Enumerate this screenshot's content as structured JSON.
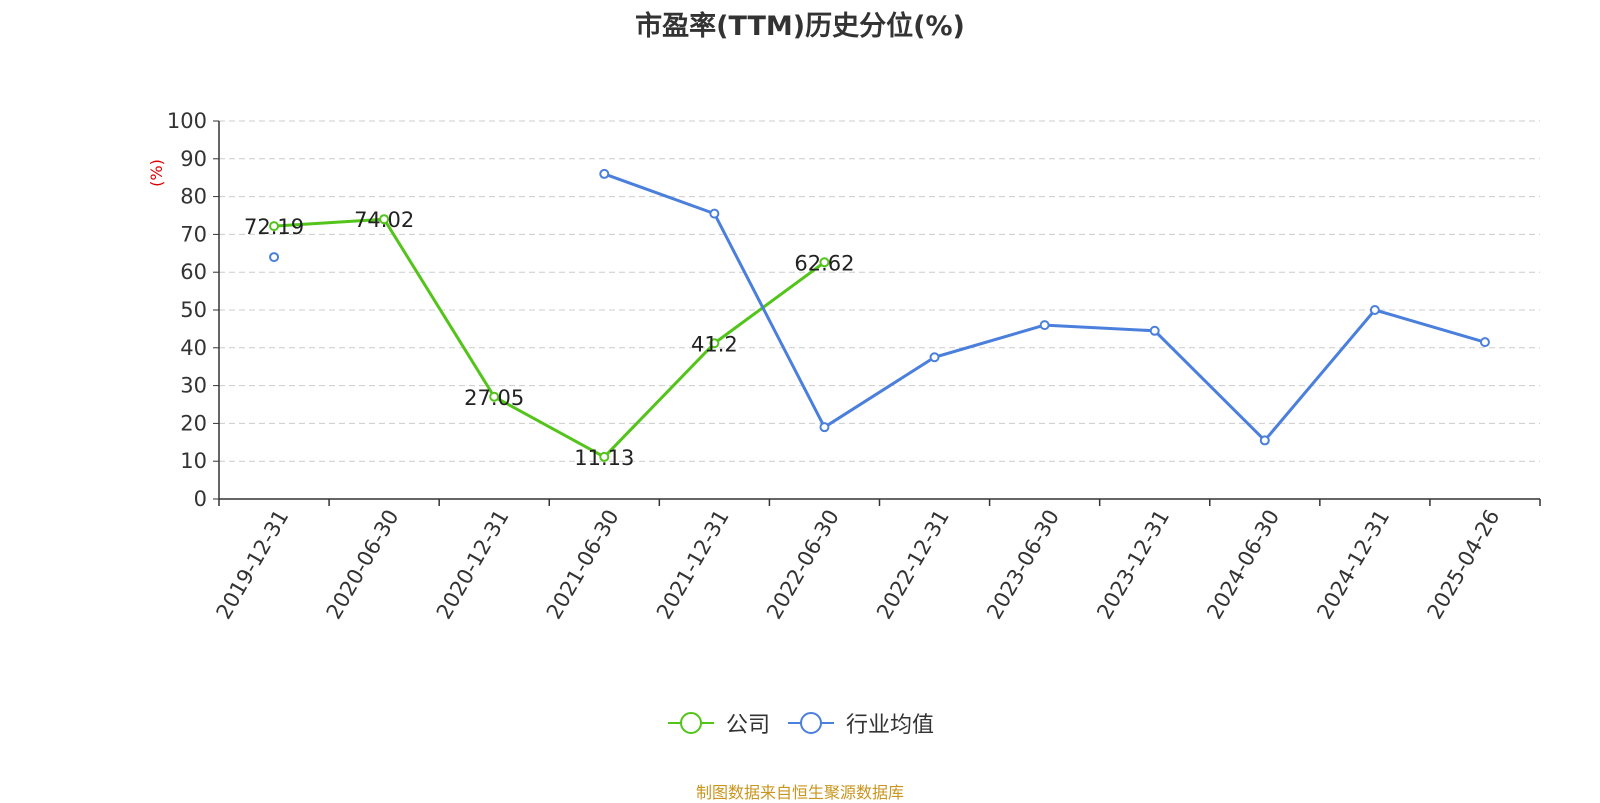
{
  "chart_data": {
    "type": "line",
    "title": "市盈率(TTM)历史分位(%)",
    "ylabel": "(%)",
    "ylim": [
      0,
      100
    ],
    "yticks": [
      0,
      10,
      20,
      30,
      40,
      50,
      60,
      70,
      80,
      90,
      100
    ],
    "categories": [
      "2019-12-31",
      "2020-06-30",
      "2020-12-31",
      "2021-06-30",
      "2021-12-31",
      "2022-06-30",
      "2022-12-31",
      "2023-06-30",
      "2023-12-31",
      "2024-06-30",
      "2024-12-31",
      "2025-04-26"
    ],
    "grid": true,
    "legend_position": "bottom",
    "series": [
      {
        "name": "公司",
        "color": "#52c41a",
        "values": [
          72.19,
          74.02,
          27.05,
          11.13,
          41.2,
          62.62,
          null,
          null,
          null,
          null,
          null,
          null
        ],
        "labels": [
          "72.19",
          "74.02",
          "27.05",
          "11.13",
          "41.2",
          "62.62",
          "",
          "",
          "",
          "",
          "",
          ""
        ]
      },
      {
        "name": "行业均值",
        "color": "#4a7fdc",
        "values": [
          64,
          null,
          null,
          86,
          75.5,
          19,
          37.5,
          46,
          44.5,
          15.5,
          50,
          41.5
        ],
        "labels": [
          "",
          "",
          "",
          "",
          "",
          "",
          "",
          "",
          "",
          "",
          "",
          ""
        ]
      }
    ]
  },
  "footer": {
    "source": "制图数据来自恒生聚源数据库"
  }
}
